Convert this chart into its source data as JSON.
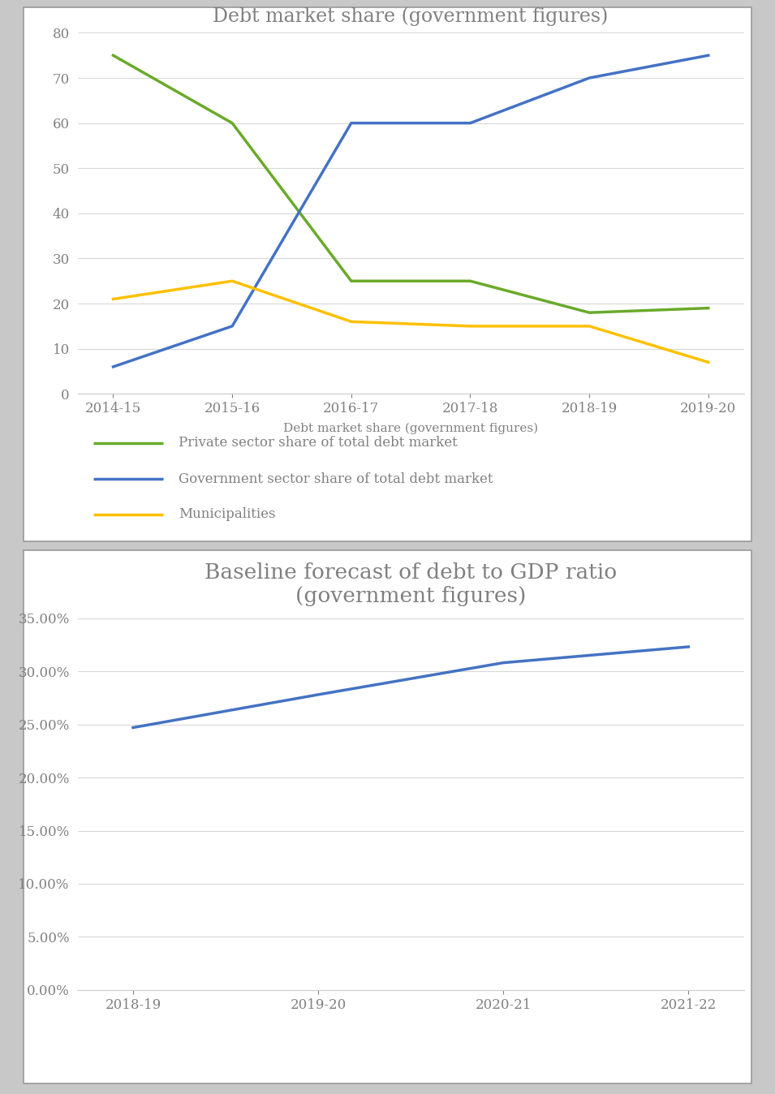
{
  "chart1": {
    "title": "Debt market share (government figures)",
    "xlabel": "Debt market share (government figures)",
    "categories": [
      "2014-15",
      "2015-16",
      "2016-17",
      "2017-18",
      "2018-19",
      "2019-20"
    ],
    "private_sector": [
      75,
      60,
      25,
      25,
      18,
      19
    ],
    "government_sector": [
      6,
      15,
      60,
      60,
      70,
      75
    ],
    "municipalities": [
      21,
      25,
      16,
      15,
      15,
      7
    ],
    "private_color": "#6aaa2a",
    "government_color": "#4472c4",
    "municipalities_color": "#ffc000",
    "legend_private": "Private sector share of total debt market",
    "legend_government": "Government sector share of total debt market",
    "legend_municipalities": "Municipalities",
    "ylim": [
      0,
      80
    ],
    "yticks": [
      0,
      10,
      20,
      30,
      40,
      50,
      60,
      70,
      80
    ],
    "line_width": 2.5,
    "title_fontsize": 17,
    "tick_fontsize": 12,
    "label_fontsize": 11,
    "legend_fontsize": 12,
    "bg_color": "#ffffff"
  },
  "chart2": {
    "title": "Baseline forecast of debt to GDP ratio\n(government figures)",
    "categories": [
      "2018-19",
      "2019-20",
      "2020-21",
      "2021-22"
    ],
    "values": [
      0.247,
      0.278,
      0.308,
      0.323
    ],
    "line_color": "#4472c4",
    "ylim": [
      0.0,
      0.35
    ],
    "yticks": [
      0.0,
      0.05,
      0.1,
      0.15,
      0.2,
      0.25,
      0.3,
      0.35
    ],
    "line_width": 2.5,
    "title_fontsize": 19,
    "tick_fontsize": 12,
    "bg_color": "#ffffff"
  },
  "outer_bg": "#c8c8c8",
  "box_border_color": "#999999",
  "text_color": "#808080"
}
